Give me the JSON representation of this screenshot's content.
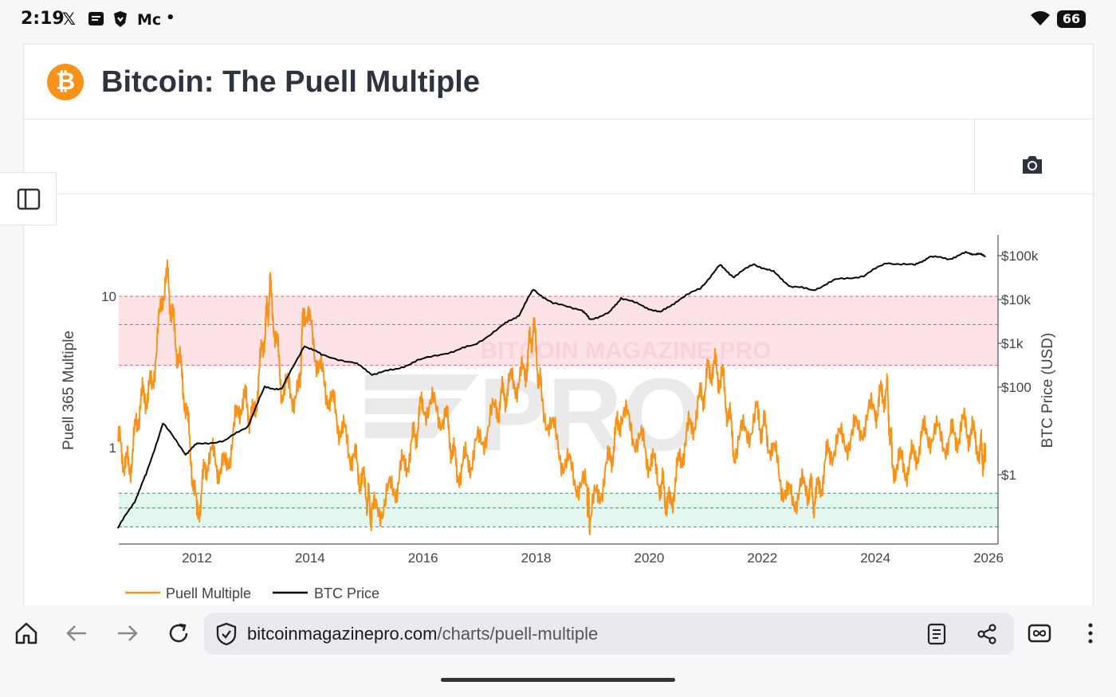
{
  "status_bar": {
    "time": "2:19",
    "apps": [
      "𝕏",
      "Mc",
      "•"
    ],
    "battery": "66"
  },
  "page": {
    "title": "Bitcoin: The Puell Multiple",
    "logo_symbol": "₿",
    "icons": [
      "bitcoin-logo-icon",
      "camera-icon",
      "sidebar-toggle-icon"
    ]
  },
  "chart_data": {
    "type": "line",
    "title": "",
    "watermark": "BITCOIN MAGAZINE PRO",
    "y_left_label": "Puell 365 Multiple",
    "y_right_label": "BTC Price (USD)",
    "y_left_scale": "log",
    "y_right_scale": "log",
    "y_left_ticks": [
      "1",
      "10"
    ],
    "y_right_ticks": [
      "$1",
      "$100",
      "$1k",
      "$10k",
      "$100k"
    ],
    "x_ticks": [
      "2012",
      "2014",
      "2016",
      "2018",
      "2020",
      "2022",
      "2024",
      "2026"
    ],
    "bands": [
      {
        "name": "overvalued",
        "from": 3.5,
        "to": 10,
        "color": "#fde3e6"
      },
      {
        "name": "undervalued",
        "from": 0.3,
        "to": 0.5,
        "color": "#e3f7ef"
      }
    ],
    "band_lines": [
      10,
      6.5,
      3.5,
      0.5,
      0.4,
      0.3
    ],
    "legend_position": "bottom-left",
    "series": [
      {
        "name": "Puell Multiple",
        "color": "#f7931a",
        "axis": "left",
        "points": [
          [
            2010.6,
            1.1
          ],
          [
            2010.8,
            0.7
          ],
          [
            2011.0,
            2.0
          ],
          [
            2011.2,
            2.5
          ],
          [
            2011.45,
            15.0
          ],
          [
            2011.6,
            6.0
          ],
          [
            2011.8,
            2.0
          ],
          [
            2012.0,
            0.35
          ],
          [
            2012.2,
            0.9
          ],
          [
            2012.5,
            0.7
          ],
          [
            2012.8,
            2.2
          ],
          [
            2013.0,
            1.5
          ],
          [
            2013.2,
            6.0
          ],
          [
            2013.3,
            11.0
          ],
          [
            2013.5,
            2.5
          ],
          [
            2013.8,
            2.2
          ],
          [
            2013.9,
            9.0
          ],
          [
            2014.2,
            3.0
          ],
          [
            2014.5,
            1.5
          ],
          [
            2014.8,
            0.8
          ],
          [
            2015.0,
            0.5
          ],
          [
            2015.1,
            0.35
          ],
          [
            2015.5,
            0.55
          ],
          [
            2015.8,
            1.0
          ],
          [
            2016.0,
            2.0
          ],
          [
            2016.4,
            1.6
          ],
          [
            2016.6,
            0.7
          ],
          [
            2016.9,
            0.9
          ],
          [
            2017.3,
            1.8
          ],
          [
            2017.5,
            2.5
          ],
          [
            2017.8,
            3.0
          ],
          [
            2017.95,
            6.5
          ],
          [
            2018.1,
            2.0
          ],
          [
            2018.5,
            0.8
          ],
          [
            2018.9,
            0.5
          ],
          [
            2018.95,
            0.35
          ],
          [
            2019.3,
            0.8
          ],
          [
            2019.5,
            1.7
          ],
          [
            2019.9,
            1.0
          ],
          [
            2020.2,
            0.6
          ],
          [
            2020.35,
            0.4
          ],
          [
            2020.6,
            1.0
          ],
          [
            2020.9,
            2.0
          ],
          [
            2021.1,
            3.5
          ],
          [
            2021.3,
            2.8
          ],
          [
            2021.5,
            1.0
          ],
          [
            2021.9,
            1.6
          ],
          [
            2022.1,
            1.2
          ],
          [
            2022.45,
            0.45
          ],
          [
            2022.8,
            0.55
          ],
          [
            2022.95,
            0.45
          ],
          [
            2023.2,
            1.0
          ],
          [
            2023.6,
            1.2
          ],
          [
            2024.0,
            1.8
          ],
          [
            2024.2,
            2.5
          ],
          [
            2024.3,
            0.8
          ],
          [
            2024.6,
            0.75
          ],
          [
            2024.9,
            1.3
          ],
          [
            2025.3,
            1.1
          ],
          [
            2025.6,
            1.4
          ],
          [
            2025.85,
            1.0
          ],
          [
            2025.95,
            0.8
          ]
        ]
      },
      {
        "name": "BTC Price",
        "color": "#000000",
        "axis": "right",
        "points": [
          [
            2010.6,
            0.06
          ],
          [
            2010.9,
            0.25
          ],
          [
            2011.1,
            1.0
          ],
          [
            2011.4,
            15.0
          ],
          [
            2011.8,
            3.0
          ],
          [
            2012.0,
            5.0
          ],
          [
            2012.5,
            6.0
          ],
          [
            2012.9,
            13.0
          ],
          [
            2013.2,
            100.0
          ],
          [
            2013.5,
            90.0
          ],
          [
            2013.9,
            900.0
          ],
          [
            2014.2,
            550.0
          ],
          [
            2014.8,
            350.0
          ],
          [
            2015.1,
            200.0
          ],
          [
            2015.5,
            250.0
          ],
          [
            2015.9,
            400.0
          ],
          [
            2016.5,
            650.0
          ],
          [
            2016.9,
            900.0
          ],
          [
            2017.4,
            2500.0
          ],
          [
            2017.7,
            4500.0
          ],
          [
            2017.95,
            17000.0
          ],
          [
            2018.3,
            8000.0
          ],
          [
            2018.8,
            6000.0
          ],
          [
            2018.95,
            3500.0
          ],
          [
            2019.3,
            5000.0
          ],
          [
            2019.5,
            11000.0
          ],
          [
            2019.9,
            7000.0
          ],
          [
            2020.2,
            5000.0
          ],
          [
            2020.5,
            9500.0
          ],
          [
            2020.9,
            18000.0
          ],
          [
            2021.25,
            60000.0
          ],
          [
            2021.5,
            33000.0
          ],
          [
            2021.85,
            65000.0
          ],
          [
            2022.2,
            42000.0
          ],
          [
            2022.5,
            20000.0
          ],
          [
            2022.9,
            16500.0
          ],
          [
            2023.3,
            28000.0
          ],
          [
            2023.8,
            35000.0
          ],
          [
            2024.2,
            70000.0
          ],
          [
            2024.7,
            60000.0
          ],
          [
            2024.95,
            95000.0
          ],
          [
            2025.3,
            85000.0
          ],
          [
            2025.6,
            115000.0
          ],
          [
            2025.8,
            110000.0
          ],
          [
            2025.95,
            98000.0
          ]
        ]
      }
    ]
  },
  "browser": {
    "url_domain": "bitcoinmagazinepro.com",
    "url_path": "/charts/puell-multiple"
  }
}
